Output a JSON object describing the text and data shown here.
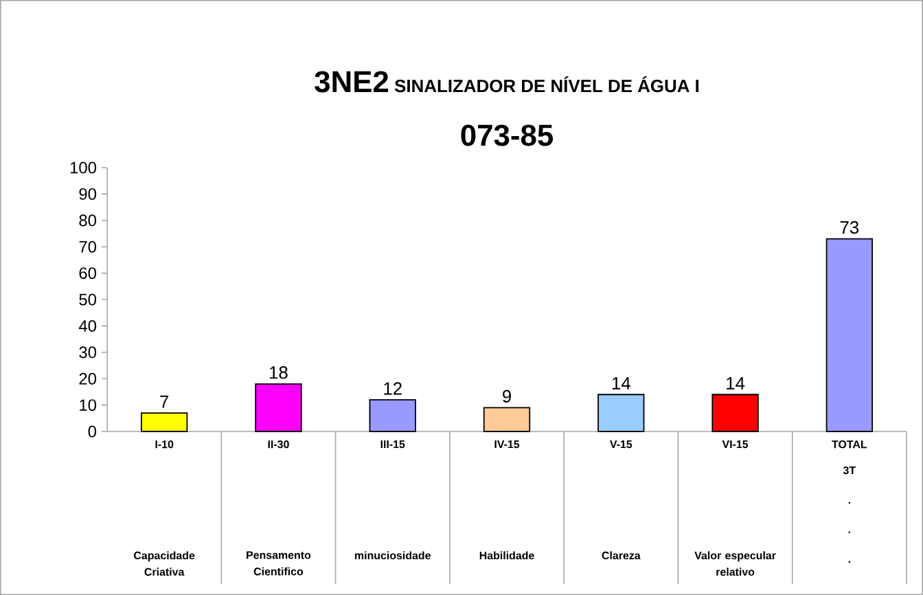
{
  "chart_data": {
    "type": "bar",
    "title": "3NE2",
    "subtitle": "SINALIZADOR  DE NÍVEL DE ÁGUA I",
    "categories": [
      "I-10",
      "II-30",
      "III-15",
      "IV-15",
      "V-15",
      "VI-15",
      "TOTAL"
    ],
    "values": [
      7,
      18,
      12,
      9,
      14,
      14,
      73
    ],
    "colors": [
      "#ffff00",
      "#ff00ff",
      "#9999ff",
      "#ffcc99",
      "#99ccff",
      "#ff0000",
      "#9999ff"
    ],
    "ylim": [
      0,
      100
    ],
    "yticks": [
      0,
      10,
      20,
      30,
      40,
      50,
      60,
      70,
      80,
      90,
      100
    ],
    "data_labels": true,
    "grid": false,
    "annotations": [
      "073-85",
      "Capacidade Criativa",
      "Pensamento Cientifico",
      "minuciosidade",
      "Habilidade",
      "Clareza",
      "Valor especular relativo",
      "3T",
      ".",
      ".",
      "."
    ]
  }
}
